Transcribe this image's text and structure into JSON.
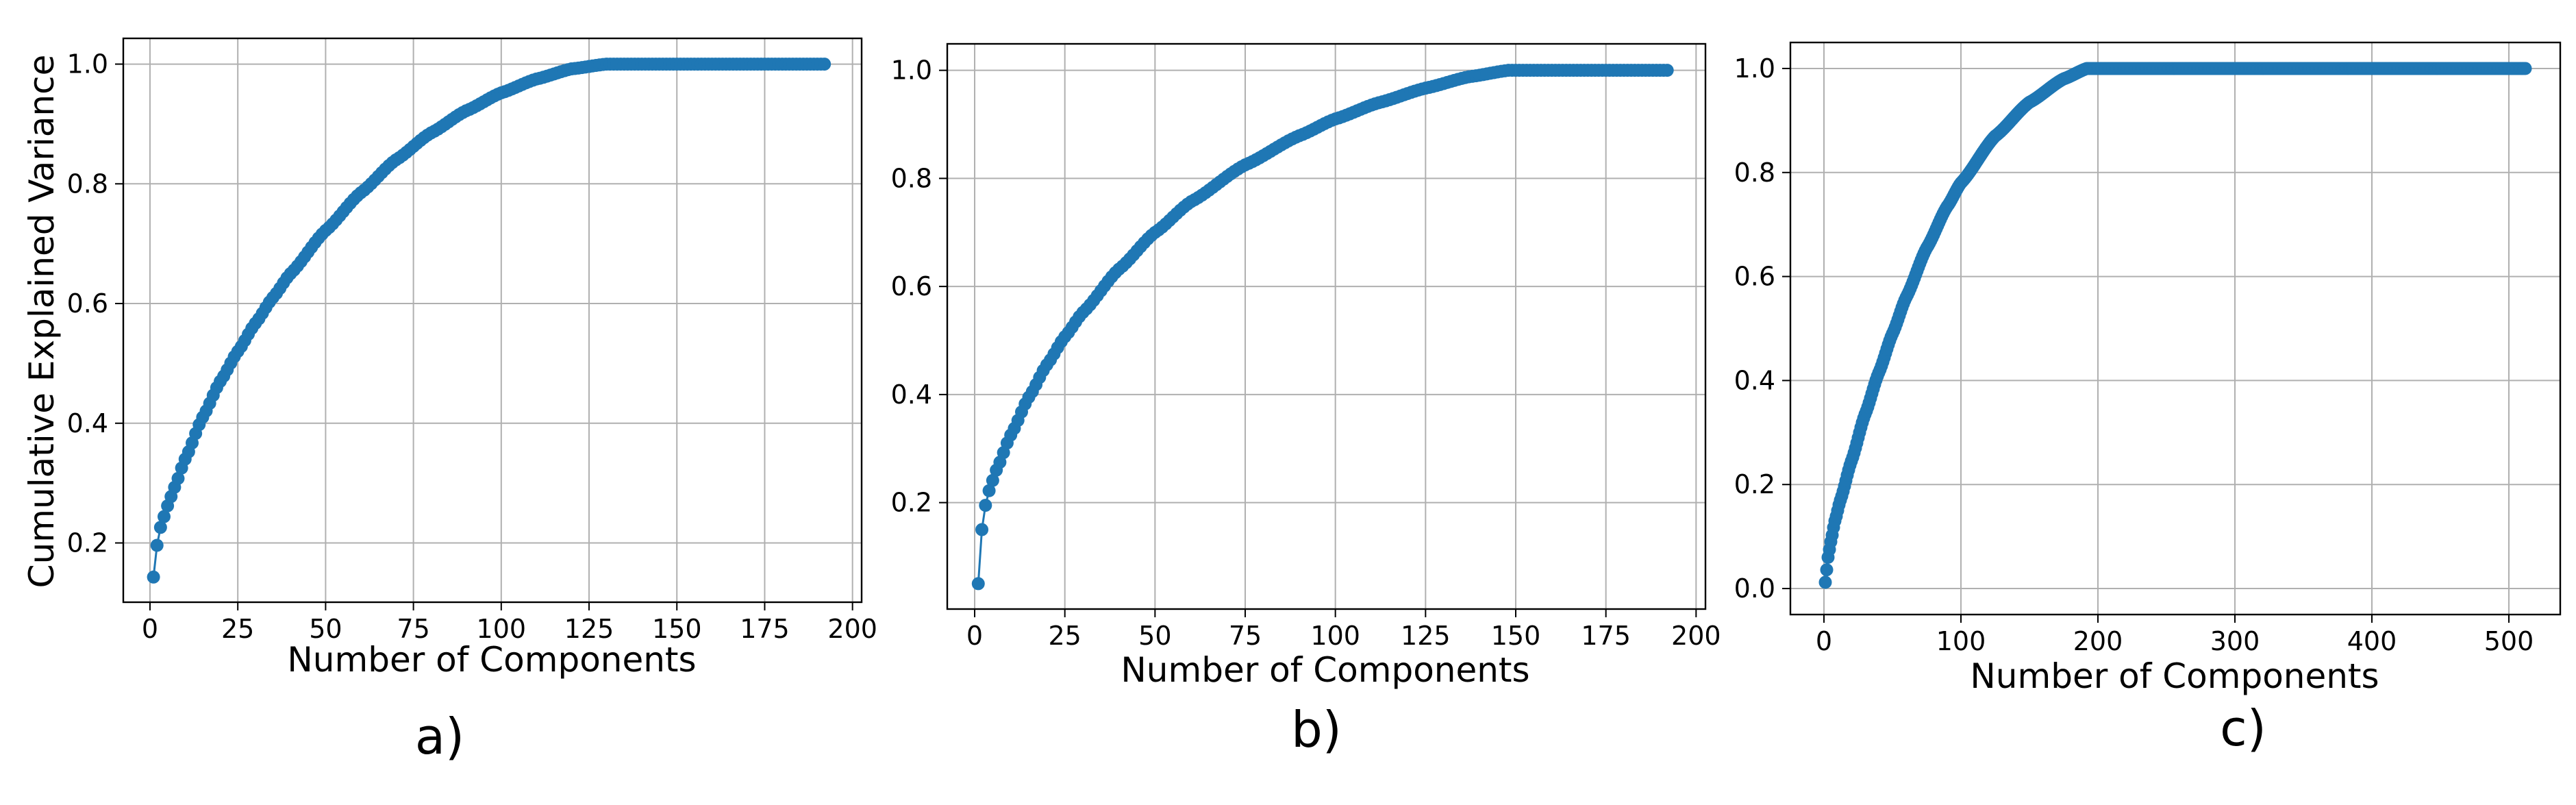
{
  "colors": {
    "series": "#1f77b4",
    "grid": "#b0b0b0",
    "axes": "#000000"
  },
  "chart_data": [
    {
      "type": "line",
      "panel_label": "a)",
      "xlabel": "Number of Components",
      "ylabel": "Cumulative Explained Variance",
      "xlim": [
        -7.6,
        202.6
      ],
      "ylim": [
        0.101,
        1.043
      ],
      "xticks": [
        0,
        25,
        50,
        75,
        100,
        125,
        150,
        175,
        200
      ],
      "yticks": [
        0.2,
        0.4,
        0.6,
        0.8,
        1.0
      ],
      "xtick_labels": [
        "0",
        "25",
        "50",
        "75",
        "100",
        "125",
        "150",
        "175",
        "200"
      ],
      "ytick_labels": [
        "0.2",
        "0.4",
        "0.6",
        "0.8",
        "1.0"
      ],
      "grid": true,
      "marker": "circle",
      "x_range": [
        1,
        192
      ],
      "points": [
        [
          1,
          0.143
        ],
        [
          2,
          0.196
        ],
        [
          3,
          0.226
        ],
        [
          5,
          0.262
        ],
        [
          7,
          0.293
        ],
        [
          10,
          0.34
        ],
        [
          15,
          0.41
        ],
        [
          20,
          0.47
        ],
        [
          25,
          0.52
        ],
        [
          30,
          0.567
        ],
        [
          35,
          0.61
        ],
        [
          40,
          0.65
        ],
        [
          50,
          0.722
        ],
        [
          60,
          0.785
        ],
        [
          70,
          0.84
        ],
        [
          80,
          0.885
        ],
        [
          90,
          0.922
        ],
        [
          100,
          0.952
        ],
        [
          110,
          0.975
        ],
        [
          120,
          0.992
        ],
        [
          130,
          1.0
        ],
        [
          192,
          1.0
        ]
      ]
    },
    {
      "type": "line",
      "panel_label": "b)",
      "xlabel": "Number of Components",
      "ylabel": "",
      "xlim": [
        -7.6,
        202.6
      ],
      "ylim": [
        0.003,
        1.049
      ],
      "xticks": [
        0,
        25,
        50,
        75,
        100,
        125,
        150,
        175,
        200
      ],
      "yticks": [
        0.2,
        0.4,
        0.6,
        0.8,
        1.0
      ],
      "xtick_labels": [
        "0",
        "25",
        "50",
        "75",
        "100",
        "125",
        "150",
        "175",
        "200"
      ],
      "ytick_labels": [
        "0.2",
        "0.4",
        "0.6",
        "0.8",
        "1.0"
      ],
      "grid": true,
      "marker": "circle",
      "x_range": [
        1,
        192
      ],
      "points": [
        [
          1,
          0.05
        ],
        [
          2,
          0.15
        ],
        [
          3,
          0.195
        ],
        [
          4,
          0.222
        ],
        [
          6,
          0.26
        ],
        [
          10,
          0.325
        ],
        [
          15,
          0.395
        ],
        [
          20,
          0.455
        ],
        [
          25,
          0.507
        ],
        [
          30,
          0.552
        ],
        [
          40,
          0.632
        ],
        [
          50,
          0.7
        ],
        [
          60,
          0.757
        ],
        [
          75,
          0.825
        ],
        [
          90,
          0.879
        ],
        [
          100,
          0.91
        ],
        [
          112,
          0.94
        ],
        [
          125,
          0.967
        ],
        [
          137,
          0.988
        ],
        [
          148,
          1.0
        ],
        [
          192,
          1.0
        ]
      ]
    },
    {
      "type": "line",
      "panel_label": "c)",
      "xlabel": "Number of Components",
      "ylabel": "",
      "xlim": [
        -24.5,
        537.5
      ],
      "ylim": [
        -0.05,
        1.05
      ],
      "xticks": [
        0,
        100,
        200,
        300,
        400,
        500
      ],
      "yticks": [
        0.0,
        0.2,
        0.4,
        0.6,
        0.8,
        1.0
      ],
      "xtick_labels": [
        "0",
        "100",
        "200",
        "300",
        "400",
        "500"
      ],
      "ytick_labels": [
        "0.0",
        "0.2",
        "0.4",
        "0.6",
        "0.8",
        "1.0"
      ],
      "grid": true,
      "marker": "circle",
      "x_range": [
        1,
        512
      ],
      "points": [
        [
          1,
          0.012
        ],
        [
          3,
          0.06
        ],
        [
          5,
          0.09
        ],
        [
          8,
          0.13
        ],
        [
          12,
          0.17
        ],
        [
          20,
          0.245
        ],
        [
          30,
          0.335
        ],
        [
          40,
          0.415
        ],
        [
          50,
          0.49
        ],
        [
          60,
          0.56
        ],
        [
          75,
          0.655
        ],
        [
          90,
          0.735
        ],
        [
          100,
          0.78
        ],
        [
          125,
          0.87
        ],
        [
          150,
          0.935
        ],
        [
          175,
          0.98
        ],
        [
          192,
          1.0
        ],
        [
          512,
          1.0
        ]
      ]
    }
  ]
}
